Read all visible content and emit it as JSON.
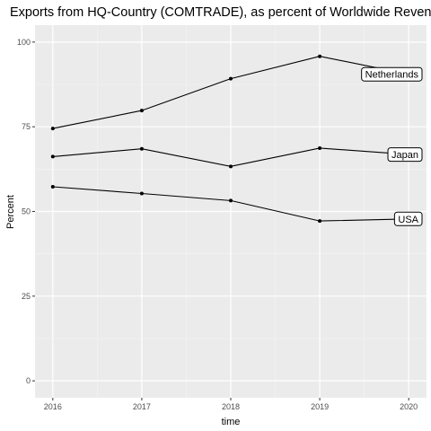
{
  "chart_data": {
    "type": "line",
    "title": "Exports from HQ-Country (COMTRADE), as percent of Worldwide Revenue o",
    "xlabel": "time",
    "ylabel": "Percent",
    "x": [
      2016,
      2017,
      2018,
      2019,
      2020
    ],
    "x_tick_labels": [
      "2016",
      "2017",
      "2018",
      "2019",
      "2020"
    ],
    "y_tick_labels": [
      "0",
      "25",
      "50",
      "75",
      "100"
    ],
    "ylim": [
      0,
      100
    ],
    "grid": true,
    "background": "#ebebeb",
    "line_color": "#000000",
    "series": [
      {
        "name": "Netherlands",
        "values": [
          74.5,
          79.8,
          89.2,
          95.8,
          90.5
        ]
      },
      {
        "name": "Japan",
        "values": [
          66.2,
          68.5,
          63.3,
          68.7,
          66.8
        ]
      },
      {
        "name": "USA",
        "values": [
          57.3,
          55.3,
          53.2,
          47.2,
          47.8
        ]
      }
    ]
  }
}
